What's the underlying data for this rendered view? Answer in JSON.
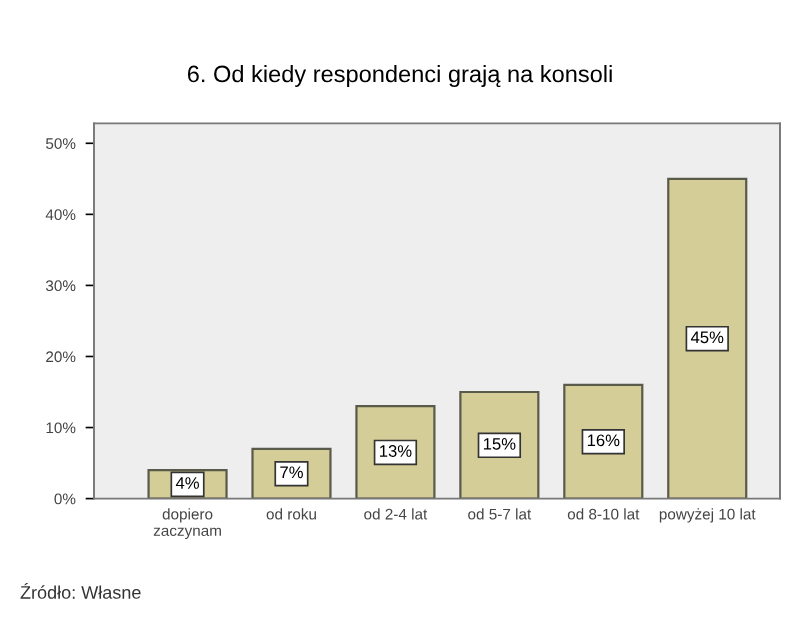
{
  "chart_data": {
    "type": "bar",
    "title": "6. Od kiedy respondenci grają na konsoli",
    "categories": [
      "dopiero\nzaczynam",
      "od roku",
      "od 2-4 lat",
      "od 5-7 lat",
      "od 8-10 lat",
      "powyżej 10 lat"
    ],
    "values": [
      4,
      7,
      13,
      15,
      16,
      45
    ],
    "value_labels": [
      "4%",
      "7%",
      "13%",
      "15%",
      "16%",
      "45%"
    ],
    "color": "#d4cd98",
    "ylim": [
      0,
      52.8
    ],
    "yticks": [
      {
        "value": 0,
        "label": "0%"
      },
      {
        "value": 10,
        "label": "10%"
      },
      {
        "value": 20,
        "label": "20%"
      },
      {
        "value": 30,
        "label": "30%"
      },
      {
        "value": 40,
        "label": "40%"
      },
      {
        "value": 50,
        "label": "50%"
      }
    ],
    "grid": false,
    "annotations": [
      "Źródło: Własne"
    ]
  }
}
